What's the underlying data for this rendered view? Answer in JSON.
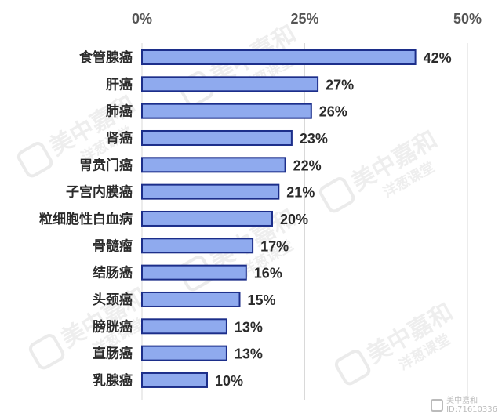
{
  "chart_data": {
    "type": "bar",
    "orientation": "horizontal",
    "categories": [
      "食管腺癌",
      "肝癌",
      "肺癌",
      "肾癌",
      "胃贲门癌",
      "子宫内膜癌",
      "粒细胞性白血病",
      "骨髓瘤",
      "结肠癌",
      "头颈癌",
      "膀胱癌",
      "直肠癌",
      "乳腺癌"
    ],
    "values": [
      42,
      27,
      26,
      23,
      22,
      21,
      20,
      17,
      16,
      15,
      13,
      13,
      10
    ],
    "value_labels": [
      "42%",
      "27%",
      "26%",
      "23%",
      "22%",
      "21%",
      "20%",
      "17%",
      "16%",
      "15%",
      "13%",
      "13%",
      "10%"
    ],
    "xlim": [
      0,
      50
    ],
    "x_ticks": [
      0,
      25,
      50
    ],
    "x_tick_labels": [
      "0%",
      "25%",
      "50%"
    ],
    "x_axis_position": "top",
    "grid": true,
    "colors": {
      "bar_fill": "#8FAAEE",
      "bar_stroke": "#1C2E8A",
      "grid": "#D9D9D9"
    }
  },
  "watermark": {
    "brand": "美中嘉和",
    "sub": "洋葱课堂"
  },
  "corner_badge": {
    "line1": "美中嘉和",
    "line2": "ID:71610336"
  }
}
